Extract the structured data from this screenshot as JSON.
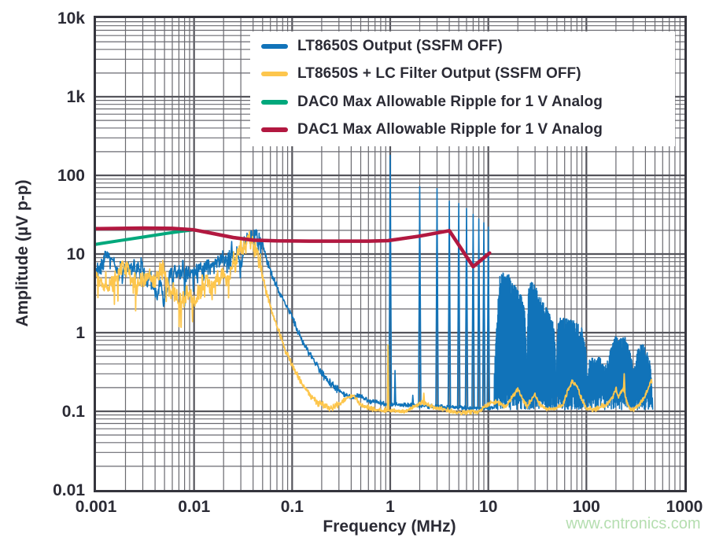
{
  "watermark": {
    "text": "www.cntronics.com",
    "color": "#b5deb0"
  },
  "chart_data": {
    "type": "line",
    "subtype": "log-log noise spectrum",
    "title": "",
    "xlabel": "Frequency (MHz)",
    "ylabel": "Amplitude (µV p-p)",
    "x_scale": "log",
    "y_scale": "log",
    "xlim": [
      0.001,
      1000
    ],
    "ylim": [
      0.01,
      10000
    ],
    "x_ticks": [
      {
        "value": 0.001,
        "label": "0.001"
      },
      {
        "value": 0.01,
        "label": "0.01"
      },
      {
        "value": 0.1,
        "label": "0.1"
      },
      {
        "value": 1,
        "label": "1"
      },
      {
        "value": 10,
        "label": "10"
      },
      {
        "value": 100,
        "label": "100"
      },
      {
        "value": 1000,
        "label": "1000"
      }
    ],
    "y_ticks": [
      {
        "value": 10000,
        "label": "10k"
      },
      {
        "value": 1000,
        "label": "1k"
      },
      {
        "value": 100,
        "label": "100"
      },
      {
        "value": 10,
        "label": "10"
      },
      {
        "value": 1,
        "label": "1"
      },
      {
        "value": 0.1,
        "label": "0.1"
      },
      {
        "value": 0.01,
        "label": "0.01"
      }
    ],
    "grid": {
      "major": true,
      "minor": true,
      "major_color": "#55555c",
      "minor_color": "#6a6a70",
      "border_color": "#35353d"
    },
    "legend": {
      "position": "top-inside",
      "background": "#ffffff"
    },
    "series": [
      {
        "name": "LT8650S Output (SSFM OFF)",
        "color": "#1173b9",
        "kind": "noisy-spectrum",
        "envelope_MHz_uVpp": [
          [
            0.001,
            7.2
          ],
          [
            0.0016,
            5.4
          ],
          [
            0.0022,
            4.6
          ],
          [
            0.003,
            4.3
          ],
          [
            0.005,
            4.4
          ],
          [
            0.008,
            4.1
          ],
          [
            0.012,
            4.4
          ],
          [
            0.018,
            5.2
          ],
          [
            0.025,
            7.5
          ],
          [
            0.032,
            10.5
          ],
          [
            0.04,
            11.8
          ],
          [
            0.048,
            10.5
          ],
          [
            0.058,
            6.5
          ],
          [
            0.07,
            3.8
          ],
          [
            0.085,
            2.4
          ],
          [
            0.1,
            1.55
          ],
          [
            0.13,
            0.75
          ],
          [
            0.17,
            0.42
          ],
          [
            0.22,
            0.26
          ],
          [
            0.3,
            0.18
          ],
          [
            0.4,
            0.15
          ],
          [
            0.5,
            0.16
          ],
          [
            0.6,
            0.135
          ],
          [
            0.75,
            0.13
          ],
          [
            0.9,
            0.125
          ],
          [
            1.5,
            0.12
          ],
          [
            3,
            0.115
          ],
          [
            6,
            0.11
          ],
          [
            10,
            0.11
          ]
        ],
        "spikes_MHz_uVpp": [
          [
            1,
            180
          ],
          [
            1.12,
            0.33
          ],
          [
            1.7,
            0.16
          ],
          [
            2,
            72
          ],
          [
            3,
            68
          ],
          [
            4,
            47
          ],
          [
            5,
            44
          ],
          [
            6,
            38
          ],
          [
            7,
            32
          ],
          [
            8,
            28
          ],
          [
            9,
            25
          ],
          [
            10,
            22
          ]
        ],
        "forest_top_MHz_uVpp": [
          [
            11.5,
            0.35
          ],
          [
            12.2,
            1.5
          ],
          [
            13,
            5.2
          ],
          [
            14,
            5.8
          ],
          [
            15,
            5.0
          ],
          [
            16,
            5.8
          ],
          [
            17,
            4.6
          ],
          [
            18,
            4.2
          ],
          [
            19.5,
            3.6
          ],
          [
            21,
            3.2
          ],
          [
            22.5,
            2.6
          ],
          [
            23.5,
            1.8
          ],
          [
            24.5,
            0.35
          ],
          [
            25.5,
            3.6
          ],
          [
            27,
            4.4
          ],
          [
            29,
            4.2
          ],
          [
            31,
            3.6
          ],
          [
            34,
            2.8
          ],
          [
            37,
            2.3
          ],
          [
            41,
            1.9
          ],
          [
            45,
            1.5
          ],
          [
            47.5,
            0.9
          ],
          [
            49,
            0.28
          ],
          [
            51,
            1.35
          ],
          [
            55,
            1.6
          ],
          [
            60,
            1.55
          ],
          [
            66,
            1.45
          ],
          [
            72,
            1.5
          ],
          [
            78,
            1.35
          ],
          [
            84,
            1.25
          ],
          [
            90,
            1.15
          ],
          [
            95,
            0.85
          ],
          [
            100,
            0.5
          ],
          [
            103,
            0.28
          ],
          [
            107,
            0.45
          ],
          [
            115,
            0.48
          ],
          [
            125,
            0.45
          ],
          [
            135,
            0.5
          ],
          [
            145,
            0.42
          ],
          [
            155,
            0.4
          ],
          [
            165,
            0.45
          ],
          [
            175,
            0.6
          ],
          [
            185,
            0.8
          ],
          [
            200,
            0.9
          ],
          [
            215,
            0.85
          ],
          [
            230,
            0.88
          ],
          [
            245,
            0.9
          ],
          [
            260,
            0.75
          ],
          [
            280,
            0.55
          ],
          [
            300,
            0.35
          ],
          [
            315,
            0.4
          ],
          [
            330,
            0.6
          ],
          [
            345,
            0.72
          ],
          [
            360,
            0.75
          ],
          [
            380,
            0.7
          ],
          [
            400,
            0.65
          ],
          [
            420,
            0.55
          ],
          [
            440,
            0.45
          ],
          [
            455,
            0.3
          ],
          [
            468,
            0.18
          ]
        ],
        "forest_floor_uVpp": 0.105,
        "f_end_MHz": 470
      },
      {
        "name": "LT8650S + LC Filter Output (SSFM OFF)",
        "color": "#fdc64d",
        "kind": "noisy-spectrum",
        "envelope_MHz_uVpp": [
          [
            0.001,
            6.8
          ],
          [
            0.0014,
            5.2
          ],
          [
            0.002,
            4.4
          ],
          [
            0.003,
            3.9
          ],
          [
            0.005,
            4.3
          ],
          [
            0.008,
            3.9
          ],
          [
            0.012,
            4.3
          ],
          [
            0.018,
            5.5
          ],
          [
            0.024,
            8.0
          ],
          [
            0.03,
            10.8
          ],
          [
            0.035,
            11.2
          ],
          [
            0.042,
            8.5
          ],
          [
            0.05,
            4.5
          ],
          [
            0.06,
            2.1
          ],
          [
            0.075,
            0.95
          ],
          [
            0.09,
            0.5
          ],
          [
            0.11,
            0.3
          ],
          [
            0.14,
            0.18
          ],
          [
            0.18,
            0.13
          ],
          [
            0.25,
            0.11
          ],
          [
            0.42,
            0.16
          ],
          [
            0.5,
            0.12
          ],
          [
            0.7,
            0.105
          ],
          [
            1.5,
            0.1
          ],
          [
            2.1,
            0.13
          ],
          [
            3,
            0.11
          ],
          [
            5,
            0.095
          ],
          [
            8,
            0.1
          ],
          [
            10,
            0.125
          ],
          [
            12,
            0.13
          ],
          [
            15,
            0.115
          ],
          [
            18,
            0.16
          ],
          [
            20,
            0.19
          ],
          [
            22,
            0.15
          ],
          [
            25,
            0.115
          ],
          [
            28,
            0.15
          ],
          [
            30,
            0.16
          ],
          [
            34,
            0.12
          ],
          [
            40,
            0.105
          ],
          [
            50,
            0.11
          ],
          [
            58,
            0.12
          ],
          [
            65,
            0.19
          ],
          [
            72,
            0.24
          ],
          [
            80,
            0.21
          ],
          [
            88,
            0.15
          ],
          [
            100,
            0.11
          ],
          [
            120,
            0.105
          ],
          [
            140,
            0.115
          ],
          [
            160,
            0.12
          ],
          [
            175,
            0.14
          ],
          [
            190,
            0.16
          ],
          [
            200,
            0.2
          ],
          [
            210,
            0.15
          ],
          [
            225,
            0.17
          ],
          [
            240,
            0.2
          ],
          [
            255,
            0.14
          ],
          [
            275,
            0.11
          ],
          [
            300,
            0.105
          ],
          [
            330,
            0.115
          ],
          [
            360,
            0.13
          ],
          [
            390,
            0.15
          ],
          [
            415,
            0.18
          ],
          [
            440,
            0.22
          ],
          [
            460,
            0.25
          ],
          [
            468,
            0.24
          ]
        ],
        "spikes_MHz_uVpp": [
          [
            0.95,
            0.7
          ],
          [
            2.2,
            0.17
          ],
          [
            243,
            0.3
          ]
        ],
        "f_end_MHz": 468
      },
      {
        "name": "DAC0 Max Allowable Ripple for 1 V Analog",
        "color": "#00a87c",
        "kind": "line",
        "points_MHz_uVpp": [
          [
            0.001,
            13.3
          ],
          [
            0.0018,
            14.9
          ],
          [
            0.003,
            16.4
          ],
          [
            0.005,
            18.1
          ],
          [
            0.0075,
            19.5
          ],
          [
            0.01,
            20.3
          ]
        ],
        "note": "merges with and is hidden beneath DAC1 line above 0.01 MHz"
      },
      {
        "name": "DAC1 Max Allowable Ripple for 1 V Analog",
        "color": "#b21840",
        "kind": "line",
        "points_MHz_uVpp": [
          [
            0.001,
            21
          ],
          [
            0.003,
            21.4
          ],
          [
            0.006,
            21.2
          ],
          [
            0.01,
            20.3
          ],
          [
            0.015,
            18.4
          ],
          [
            0.025,
            16.2
          ],
          [
            0.04,
            15
          ],
          [
            0.07,
            14.7
          ],
          [
            0.15,
            14.6
          ],
          [
            0.6,
            14.6
          ],
          [
            0.95,
            14.8
          ],
          [
            2,
            16.9
          ],
          [
            4,
            19.8
          ],
          [
            7,
            6.9
          ],
          [
            10.3,
            10.3
          ]
        ]
      }
    ]
  }
}
